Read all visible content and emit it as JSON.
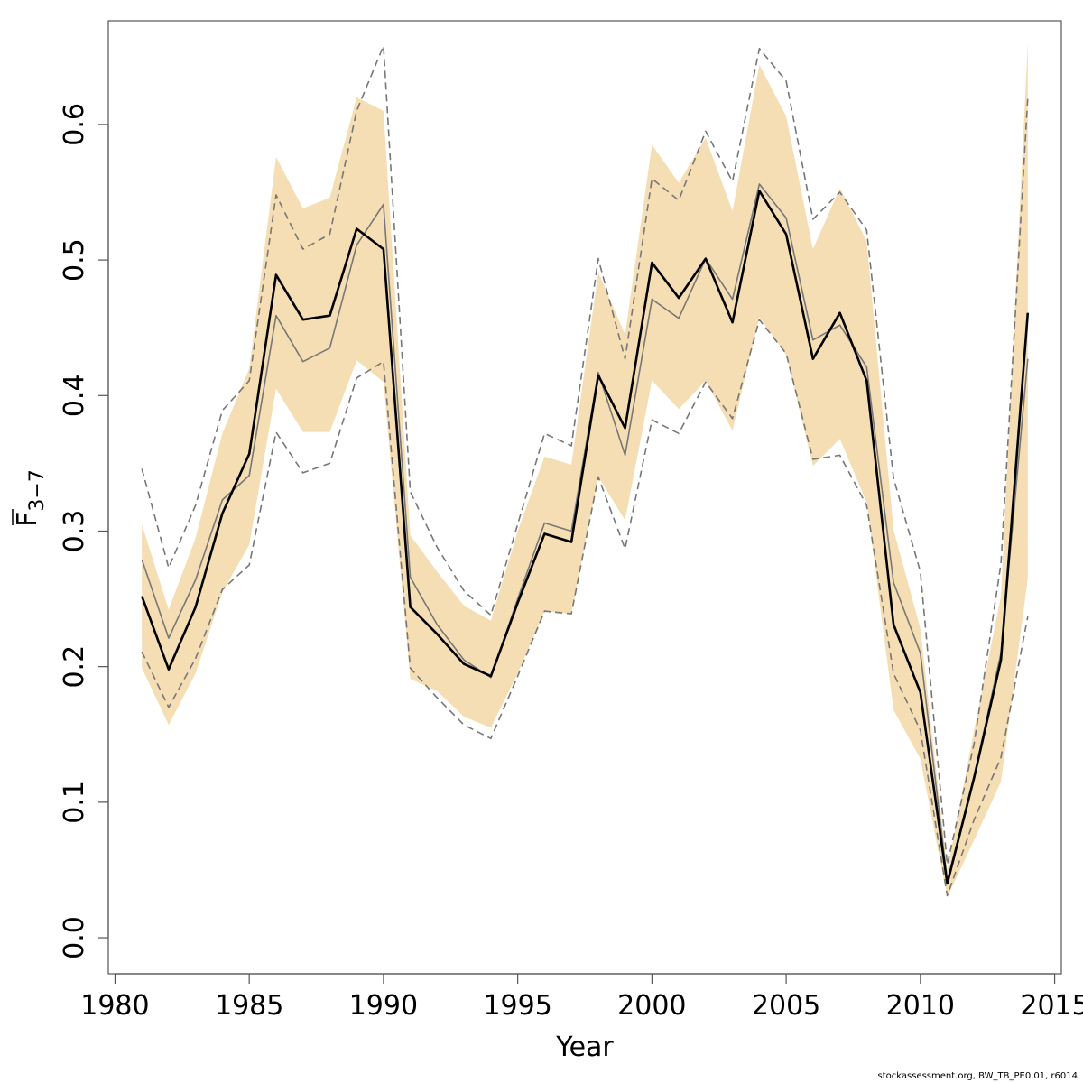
{
  "chart_data": {
    "type": "line",
    "xlabel": "Year",
    "ylabel": {
      "main": "F",
      "subscript": "3−7",
      "overline": true
    },
    "xlim": [
      1980,
      2015
    ],
    "ylim": [
      0.0,
      0.65
    ],
    "x_ticks": [
      1980,
      1985,
      1990,
      1995,
      2000,
      2005,
      2010,
      2015
    ],
    "y_ticks": [
      0.0,
      0.1,
      0.2,
      0.3,
      0.4,
      0.5,
      0.6
    ],
    "y_tick_labels": [
      "0.0",
      "0.1",
      "0.2",
      "0.3",
      "0.4",
      "0.5",
      "0.6"
    ],
    "grid": false,
    "x": [
      1981,
      1982,
      1983,
      1984,
      1985,
      1986,
      1987,
      1988,
      1989,
      1990,
      1991,
      1992,
      1993,
      1994,
      1995,
      1996,
      1997,
      1998,
      1999,
      2000,
      2001,
      2002,
      2003,
      2004,
      2005,
      2006,
      2007,
      2008,
      2009,
      2010,
      2011,
      2012,
      2013,
      2014
    ],
    "band": {
      "color": "#f5deb3",
      "lower": [
        0.199,
        0.157,
        0.195,
        0.255,
        0.29,
        0.405,
        0.373,
        0.373,
        0.426,
        0.41,
        0.191,
        0.182,
        0.163,
        0.155,
        0.195,
        0.241,
        0.239,
        0.34,
        0.308,
        0.411,
        0.39,
        0.411,
        0.374,
        0.458,
        0.43,
        0.348,
        0.368,
        0.321,
        0.168,
        0.132,
        0.03,
        0.072,
        0.115,
        0.265
      ],
      "upper": [
        0.305,
        0.242,
        0.295,
        0.372,
        0.42,
        0.576,
        0.538,
        0.546,
        0.62,
        0.61,
        0.297,
        0.27,
        0.245,
        0.234,
        0.3,
        0.355,
        0.349,
        0.491,
        0.445,
        0.585,
        0.557,
        0.59,
        0.536,
        0.644,
        0.606,
        0.508,
        0.553,
        0.514,
        0.301,
        0.228,
        0.05,
        0.153,
        0.252,
        0.66
      ]
    },
    "series": [
      {
        "color": "#000000",
        "width": 2.6,
        "dash": "",
        "values": [
          0.252,
          0.198,
          0.244,
          0.313,
          0.357,
          0.489,
          0.456,
          0.459,
          0.523,
          0.508,
          0.244,
          0.224,
          0.202,
          0.193,
          0.247,
          0.298,
          0.292,
          0.415,
          0.376,
          0.498,
          0.472,
          0.501,
          0.454,
          0.551,
          0.519,
          0.427,
          0.461,
          0.411,
          0.231,
          0.181,
          0.04,
          0.118,
          0.205,
          0.461
        ]
      },
      {
        "color": "#777777",
        "width": 1.6,
        "dash": "",
        "values": [
          0.279,
          0.221,
          0.264,
          0.323,
          0.341,
          0.459,
          0.425,
          0.435,
          0.511,
          0.541,
          0.266,
          0.231,
          0.205,
          0.192,
          0.25,
          0.306,
          0.3,
          0.417,
          0.356,
          0.471,
          0.457,
          0.501,
          0.471,
          0.556,
          0.531,
          0.441,
          0.452,
          0.421,
          0.262,
          0.21,
          0.042,
          0.119,
          0.21,
          0.427
        ]
      },
      {
        "color": "#777777",
        "width": 1.6,
        "dash": "8,5",
        "values": [
          0.346,
          0.273,
          0.319,
          0.389,
          0.411,
          0.548,
          0.508,
          0.519,
          0.61,
          0.658,
          0.329,
          0.288,
          0.256,
          0.238,
          0.305,
          0.372,
          0.363,
          0.501,
          0.427,
          0.56,
          0.544,
          0.595,
          0.558,
          0.656,
          0.632,
          0.53,
          0.55,
          0.522,
          0.339,
          0.27,
          0.054,
          0.143,
          0.276,
          0.62
        ]
      },
      {
        "color": "#777777",
        "width": 1.6,
        "dash": "8,5",
        "values": [
          0.211,
          0.17,
          0.206,
          0.257,
          0.275,
          0.373,
          0.343,
          0.35,
          0.413,
          0.425,
          0.199,
          0.177,
          0.157,
          0.147,
          0.193,
          0.241,
          0.239,
          0.34,
          0.287,
          0.382,
          0.372,
          0.41,
          0.383,
          0.456,
          0.431,
          0.353,
          0.356,
          0.319,
          0.195,
          0.153,
          0.031,
          0.087,
          0.133,
          0.237
        ]
      }
    ]
  },
  "footer": "stockassessment.org, BW_TB_PE0.01, r6014"
}
